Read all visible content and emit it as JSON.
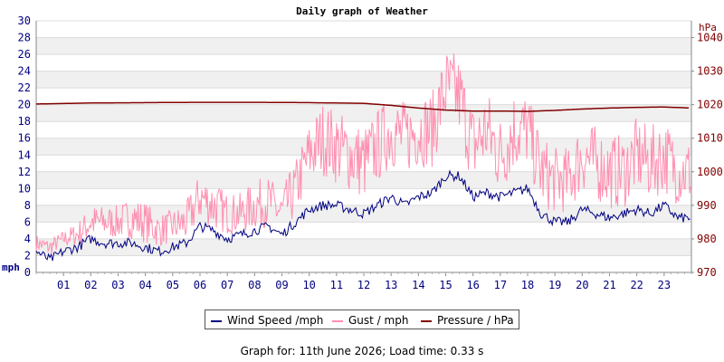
{
  "chart_data": {
    "type": "line",
    "title": "Daily graph of Weather",
    "y_left": {
      "unit_label": "mph",
      "range": [
        0,
        30
      ],
      "ticks": [
        0,
        2,
        4,
        6,
        8,
        10,
        12,
        14,
        16,
        18,
        20,
        22,
        24,
        26,
        28,
        30
      ]
    },
    "y_right": {
      "unit_label": "hPa",
      "range": [
        970,
        1045
      ],
      "ticks": [
        970,
        980,
        990,
        1000,
        1010,
        1020,
        1030,
        1040
      ]
    },
    "x": {
      "range": [
        0,
        24
      ],
      "tick_labels": [
        "01",
        "02",
        "03",
        "04",
        "05",
        "06",
        "07",
        "08",
        "09",
        "10",
        "11",
        "12",
        "13",
        "14",
        "15",
        "16",
        "17",
        "18",
        "19",
        "20",
        "21",
        "22",
        "23"
      ]
    },
    "grid": "horizontal alternating bands",
    "legend_placement": "bottom",
    "series": [
      {
        "name": "Wind Speed /mph",
        "color": "#000080",
        "axis": "left",
        "hours": [
          0,
          0.5,
          1,
          1.5,
          2,
          2.5,
          3,
          3.5,
          4,
          4.5,
          5,
          5.5,
          6,
          6.5,
          7,
          7.5,
          8,
          8.5,
          9,
          9.5,
          10,
          10.5,
          11,
          11.5,
          12,
          12.5,
          13,
          13.5,
          14,
          14.5,
          15,
          15.5,
          16,
          16.5,
          17,
          17.5,
          18,
          18.5,
          19,
          19.5,
          20,
          20.5,
          21,
          21.5,
          22,
          22.5,
          23,
          23.5,
          24
        ],
        "values": [
          2.5,
          1.5,
          2.5,
          3,
          4,
          3.5,
          3.5,
          3.5,
          3,
          2.5,
          3,
          3.5,
          5.5,
          5,
          4,
          4.5,
          5,
          5.5,
          4.5,
          6,
          7.5,
          8,
          8,
          7.5,
          7,
          8,
          9,
          8,
          9,
          9.5,
          11.5,
          11.5,
          9,
          9.5,
          9,
          9.5,
          10,
          7,
          6,
          6,
          7.5,
          7,
          6.5,
          7,
          7.5,
          7,
          8,
          6.5,
          6.5
        ]
      },
      {
        "name": "Gust / mph",
        "color": "#ff8fb0",
        "axis": "left",
        "hours": [
          0,
          0.5,
          1,
          1.5,
          2,
          2.5,
          3,
          3.5,
          4,
          4.5,
          5,
          5.5,
          6,
          6.5,
          7,
          7.5,
          8,
          8.5,
          9,
          9.5,
          10,
          10.5,
          11,
          11.5,
          12,
          12.5,
          13,
          13.5,
          14,
          14.5,
          15,
          15.5,
          16,
          16.5,
          17,
          17.5,
          18,
          18.5,
          19,
          19.5,
          20,
          20.5,
          21,
          21.5,
          22,
          22.5,
          23,
          23.5,
          24
        ],
        "values": [
          3.5,
          3,
          4,
          4.5,
          6,
          6,
          6,
          6.5,
          6,
          5,
          5.5,
          6,
          9,
          8,
          7,
          7,
          8,
          8.5,
          7,
          10,
          14,
          16,
          15,
          14,
          13,
          15,
          17,
          16,
          17,
          17,
          22,
          21,
          15,
          17,
          14,
          17,
          17,
          12,
          11,
          11,
          14,
          13,
          12,
          12,
          14,
          13,
          14,
          12,
          12
        ],
        "noise_amplitude": [
          1,
          1,
          1,
          1.5,
          2,
          2,
          2,
          2.5,
          2.5,
          2,
          2,
          2.5,
          3,
          3,
          2.5,
          2.5,
          3,
          3,
          3,
          3.5,
          4,
          4.5,
          4.5,
          4.5,
          4.5,
          4.5,
          4.5,
          4.5,
          4.5,
          4.5,
          5,
          5,
          5,
          5,
          5,
          5,
          4.5,
          4.5,
          4,
          4,
          4.5,
          4.5,
          4.5,
          4.5,
          4.5,
          4.5,
          4.5,
          4,
          4
        ]
      },
      {
        "name": "Pressure / hPa",
        "color": "#800000",
        "axis": "right",
        "hours": [
          0,
          2,
          4,
          6,
          8,
          10,
          12,
          13,
          14,
          15,
          16,
          17,
          18,
          19,
          20,
          21,
          22,
          23,
          24
        ],
        "values": [
          1020.2,
          1020.5,
          1020.6,
          1020.7,
          1020.7,
          1020.6,
          1020.4,
          1019.8,
          1019,
          1018.4,
          1018.1,
          1018.1,
          1018,
          1018.3,
          1018.7,
          1019,
          1019.2,
          1019.3,
          1019
        ]
      }
    ]
  },
  "footer": {
    "text": "Graph for: 11th June 2026; Load time: 0.33 s"
  }
}
